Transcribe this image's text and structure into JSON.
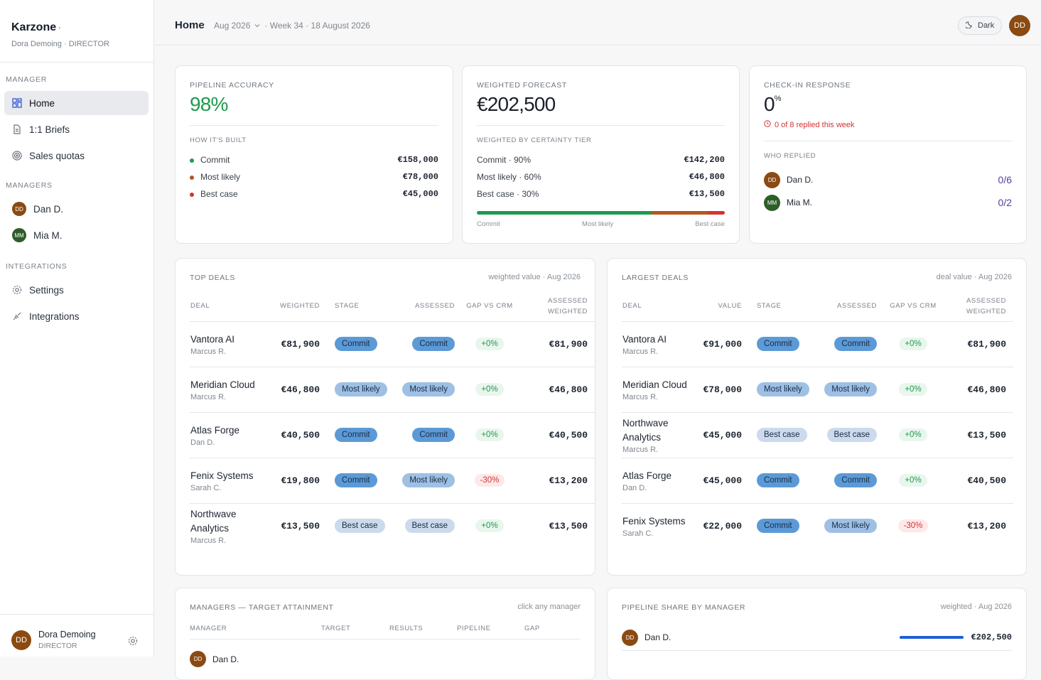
{
  "sidebar": {
    "brand": "Karzone",
    "brand_mark": "·",
    "user": "Dora Demoing · DIRECTOR",
    "nav": {
      "title": "MANAGER",
      "items": [
        "Home",
        "1:1 Briefs",
        "Sales quotas"
      ]
    },
    "managers": {
      "title": "MANAGERS",
      "items": [
        {
          "initials": "DD",
          "name": "Dan D."
        },
        {
          "initials": "MM",
          "name": "Mia M."
        }
      ]
    },
    "integrations": {
      "title": "INTEGRATIONS",
      "items": [
        "Settings",
        "Integrations"
      ]
    },
    "footer": {
      "initials": "DD",
      "name": "Dora Demoing",
      "role": "DIRECTOR"
    }
  },
  "header": {
    "title": "Home",
    "period": "Aug 2026",
    "context": "· Week 34 · 18 August 2026",
    "theme": "Dark",
    "avatar": "DD"
  },
  "pipeline_accuracy": {
    "title": "PIPELINE ACCURACY",
    "value": "98%",
    "subtitle": "HOW IT'S BUILT",
    "rows": [
      {
        "label": "Commit",
        "amount": "€158,000"
      },
      {
        "label": "Most likely",
        "amount": "€78,000"
      },
      {
        "label": "Best case",
        "amount": "€45,000"
      }
    ]
  },
  "weighted_forecast": {
    "title": "WEIGHTED FORECAST",
    "value": "€202,500",
    "subtitle": "WEIGHTED BY CERTAINTY TIER",
    "rows": [
      {
        "label": "Commit · 90%",
        "amount": "€142,200"
      },
      {
        "label": "Most likely · 60%",
        "amount": "€46,800"
      },
      {
        "label": "Best case · 30%",
        "amount": "€13,500"
      }
    ],
    "bar_labels": [
      "Commit",
      "Most likely",
      "Best case"
    ]
  },
  "check_in": {
    "title": "CHECK-IN RESPONSE",
    "value": "0",
    "unit": "%",
    "alert": "0 of 8 replied this week",
    "subtitle": "WHO REPLIED",
    "rows": [
      {
        "initials": "DD",
        "name": "Dan D.",
        "ratio": "0/6"
      },
      {
        "initials": "MM",
        "name": "Mia M.",
        "ratio": "0/2"
      }
    ]
  },
  "top_deals": {
    "title": "TOP DEALS",
    "note": "weighted value · Aug 2026",
    "columns": [
      "DEAL",
      "WEIGHTED",
      "STAGE",
      "ASSESSED",
      "GAP VS CRM",
      "ASSESSED WEIGHTED"
    ],
    "rows": [
      {
        "deal": "Vantora AI",
        "owner": "Marcus R.",
        "amount": "€81,900",
        "stage": "Commit",
        "assessed": "Commit",
        "gap": "+0%",
        "assessed_weighted": "€81,900"
      },
      {
        "deal": "Meridian Cloud",
        "owner": "Marcus R.",
        "amount": "€46,800",
        "stage": "Most likely",
        "assessed": "Most likely",
        "gap": "+0%",
        "assessed_weighted": "€46,800"
      },
      {
        "deal": "Atlas Forge",
        "owner": "Dan D.",
        "amount": "€40,500",
        "stage": "Commit",
        "assessed": "Commit",
        "gap": "+0%",
        "assessed_weighted": "€40,500"
      },
      {
        "deal": "Fenix Systems",
        "owner": "Sarah C.",
        "amount": "€19,800",
        "stage": "Commit",
        "assessed": "Most likely",
        "gap": "-30%",
        "assessed_weighted": "€13,200"
      },
      {
        "deal": "Northwave Analytics",
        "owner": "Marcus R.",
        "amount": "€13,500",
        "stage": "Best case",
        "assessed": "Best case",
        "gap": "+0%",
        "assessed_weighted": "€13,500"
      }
    ]
  },
  "largest_deals": {
    "title": "LARGEST DEALS",
    "note": "deal value · Aug 2026",
    "columns": [
      "DEAL",
      "VALUE",
      "STAGE",
      "ASSESSED",
      "GAP VS CRM",
      "ASSESSED WEIGHTED"
    ],
    "rows": [
      {
        "deal": "Vantora AI",
        "owner": "Marcus R.",
        "amount": "€91,000",
        "stage": "Commit",
        "assessed": "Commit",
        "gap": "+0%",
        "assessed_weighted": "€81,900"
      },
      {
        "deal": "Meridian Cloud",
        "owner": "Marcus R.",
        "amount": "€78,000",
        "stage": "Most likely",
        "assessed": "Most likely",
        "gap": "+0%",
        "assessed_weighted": "€46,800"
      },
      {
        "deal": "Northwave Analytics",
        "owner": "Marcus R.",
        "amount": "€45,000",
        "stage": "Best case",
        "assessed": "Best case",
        "gap": "+0%",
        "assessed_weighted": "€13,500"
      },
      {
        "deal": "Atlas Forge",
        "owner": "Dan D.",
        "amount": "€45,000",
        "stage": "Commit",
        "assessed": "Commit",
        "gap": "+0%",
        "assessed_weighted": "€40,500"
      },
      {
        "deal": "Fenix Systems",
        "owner": "Sarah C.",
        "amount": "€22,000",
        "stage": "Commit",
        "assessed": "Most likely",
        "gap": "-30%",
        "assessed_weighted": "€13,200"
      }
    ]
  },
  "target_attainment": {
    "title": "MANAGERS — TARGET ATTAINMENT",
    "note": "click any manager",
    "columns": [
      "MANAGER",
      "TARGET",
      "RESULTS",
      "PIPELINE",
      "GAP"
    ],
    "rows": [
      {
        "initials": "DD",
        "name": "Dan D."
      }
    ]
  },
  "pipeline_share": {
    "title": "PIPELINE SHARE BY MANAGER",
    "note": "weighted · Aug 2026",
    "rows": [
      {
        "initials": "DD",
        "name": "Dan D.",
        "amount": "€202,500"
      }
    ]
  }
}
